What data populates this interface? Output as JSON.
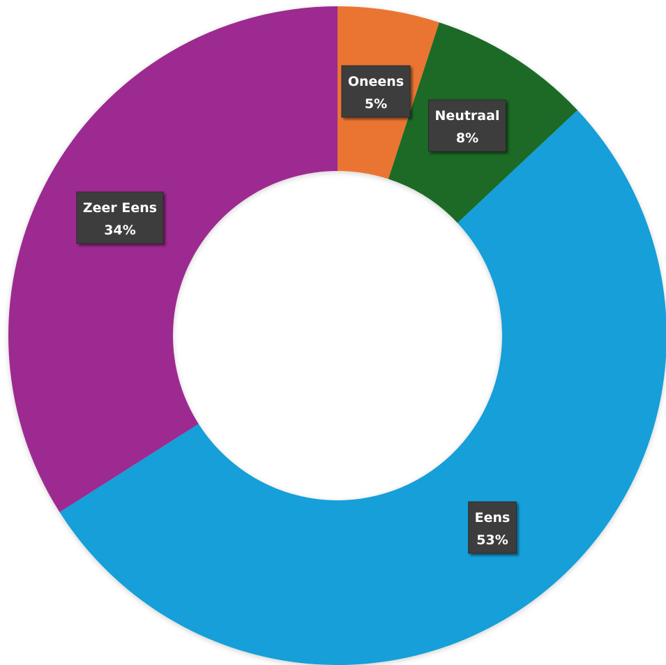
{
  "chart_data": {
    "type": "pie",
    "variant": "donut",
    "title": "",
    "categories": [
      "Oneens",
      "Neutraal",
      "Eens",
      "Zeer Eens"
    ],
    "values": [
      5,
      8,
      53,
      34
    ],
    "value_labels": [
      "5%",
      "8%",
      "53%",
      "34%"
    ],
    "colors": [
      "#EA7430",
      "#1E6B25",
      "#139FD8",
      "#9D2B90"
    ],
    "start_angle_deg": 0,
    "direction": "clockwise",
    "legend": "none",
    "data_labels": "inside-slices, dark boxes, category name and percentage"
  }
}
